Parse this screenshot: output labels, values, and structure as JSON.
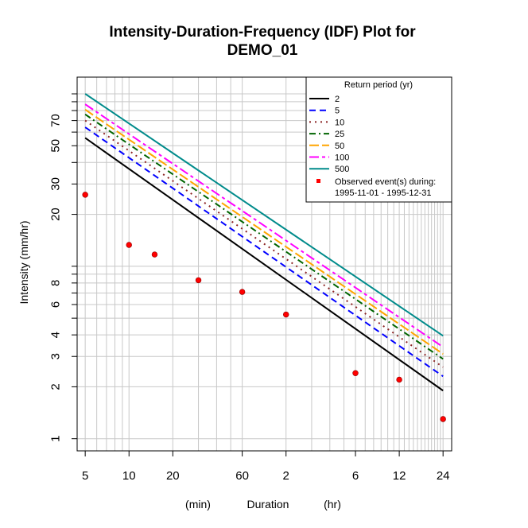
{
  "chart_data": {
    "type": "line",
    "title_line1": "Intensity-Duration-Frequency (IDF) Plot for",
    "title_line2": "DEMO_01",
    "ylabel": "Intensity (mm/hr)",
    "xlabel": "Duration",
    "xlabel_min": "(min)",
    "xlabel_hr": "(hr)",
    "x_scale": "log",
    "y_scale": "log",
    "xlim_minutes": [
      4.4,
      1650
    ],
    "ylim": [
      0.85,
      125
    ],
    "grid": true,
    "x_ticks": [
      {
        "minutes": 5,
        "label": "5"
      },
      {
        "minutes": 10,
        "label": "10"
      },
      {
        "minutes": 20,
        "label": "20"
      },
      {
        "minutes": 60,
        "label": "60"
      },
      {
        "minutes": 120,
        "label": "2"
      },
      {
        "minutes": 360,
        "label": "6"
      },
      {
        "minutes": 720,
        "label": "12"
      },
      {
        "minutes": 1440,
        "label": "24"
      }
    ],
    "y_ticks": [
      1,
      2,
      3,
      4,
      6,
      8,
      20,
      30,
      50,
      70
    ],
    "duration_range_minutes": [
      5,
      1440
    ],
    "series": [
      {
        "name": "2",
        "color": "#000000",
        "dash": "",
        "values_at_ends": [
          55.5,
          1.9
        ]
      },
      {
        "name": "5",
        "color": "#0000ff",
        "dash": "8,5",
        "values_at_ends": [
          64,
          2.3
        ]
      },
      {
        "name": "10",
        "color": "#8b2323",
        "dash": "2,5",
        "values_at_ends": [
          70,
          2.6
        ]
      },
      {
        "name": "25",
        "color": "#006400",
        "dash": "8,4,2,4",
        "values_at_ends": [
          76,
          2.9
        ]
      },
      {
        "name": "50",
        "color": "#ffa500",
        "dash": "12,4",
        "values_at_ends": [
          81,
          3.1
        ]
      },
      {
        "name": "100",
        "color": "#ff00ff",
        "dash": "12,4,4,4",
        "values_at_ends": [
          87,
          3.4
        ]
      },
      {
        "name": "500",
        "color": "#008b8b",
        "dash": "",
        "values_at_ends": [
          100,
          3.95
        ]
      }
    ],
    "observed": {
      "color": "#ff0000",
      "label_line1": "Observed event(s) during:",
      "label_line2": "1995-11-01 - 1995-12-31",
      "points": [
        {
          "minutes": 5,
          "value": 26
        },
        {
          "minutes": 10,
          "value": 13.3
        },
        {
          "minutes": 15,
          "value": 11.7
        },
        {
          "minutes": 30,
          "value": 8.3
        },
        {
          "minutes": 60,
          "value": 7.1
        },
        {
          "minutes": 120,
          "value": 5.25
        },
        {
          "minutes": 360,
          "value": 2.4
        },
        {
          "minutes": 720,
          "value": 2.2
        },
        {
          "minutes": 1440,
          "value": 1.3
        }
      ]
    },
    "legend": {
      "title": "Return period (yr)",
      "placement": "top-right"
    }
  }
}
